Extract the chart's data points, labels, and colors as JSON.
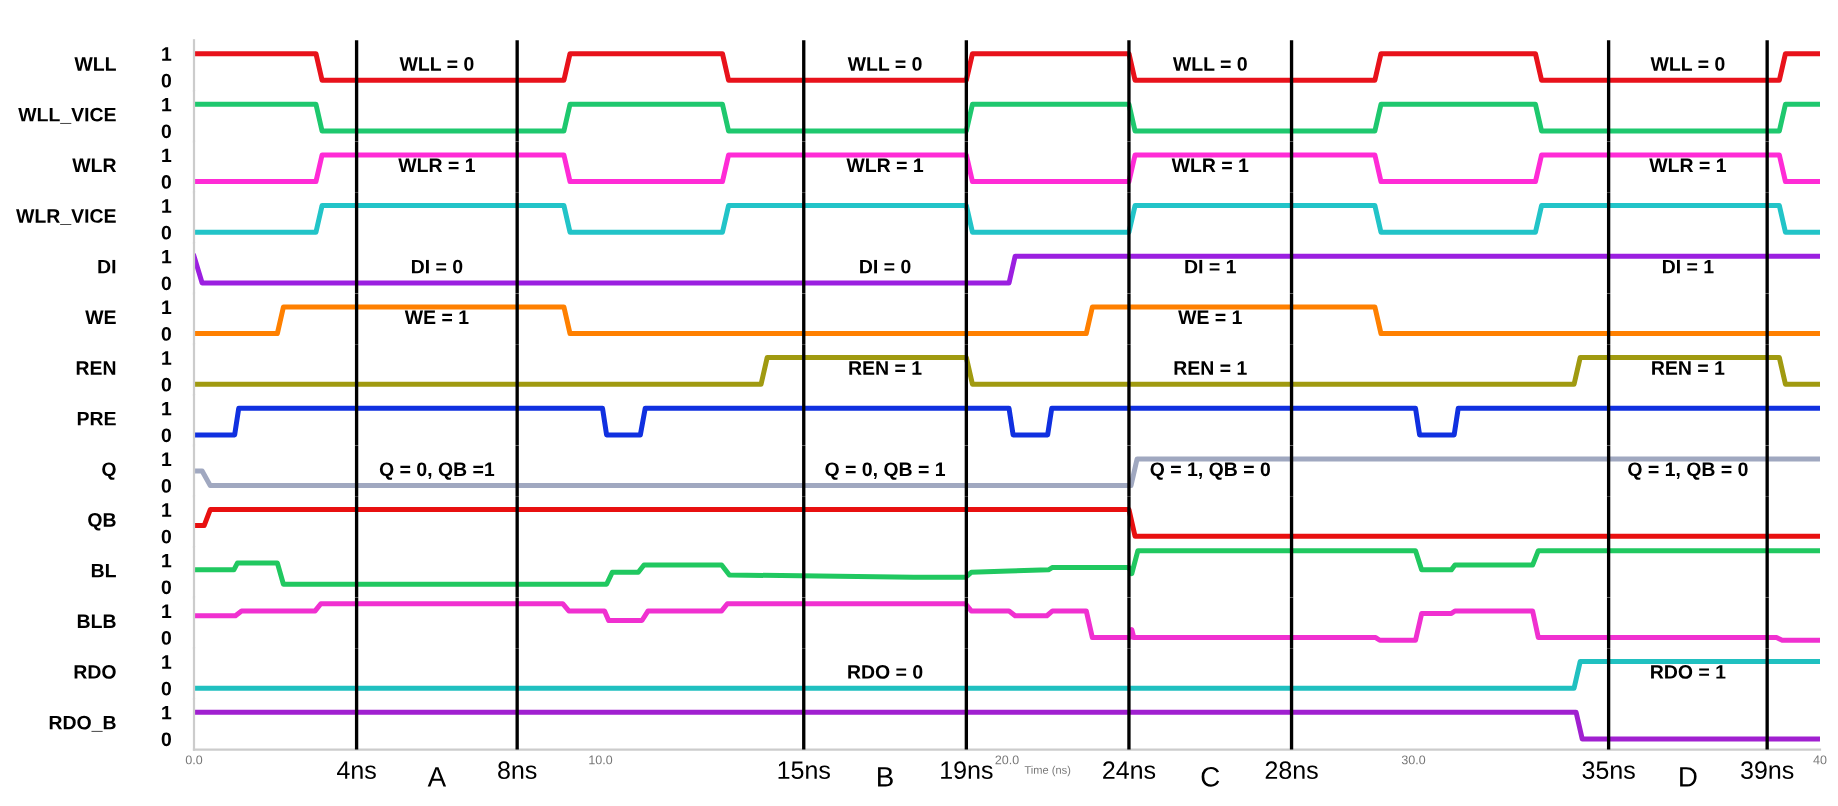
{
  "chart_data": [
    {
      "type": "line",
      "ylabel": "WLL",
      "xlim": [
        0,
        40
      ],
      "ylim": [
        -0.4,
        1.5
      ],
      "yticks": [
        0,
        1
      ],
      "tick_labels": "y",
      "legend": false,
      "series": [
        {
          "color": "#e8121b",
          "x": [
            0,
            3.0,
            3.15,
            9.1,
            9.25,
            13.0,
            13.15,
            19.0,
            19.15,
            23.0,
            23.15,
            29.05,
            29.2,
            33.0,
            33.15,
            39.0,
            39.15,
            40
          ],
          "values": [
            1,
            1,
            0,
            0,
            1,
            1,
            0,
            0,
            1,
            1,
            0,
            0,
            1,
            1,
            0,
            0,
            1,
            1
          ]
        }
      ],
      "annotations": [
        "WLL = 0",
        "WLL = 0",
        "WLL = 0",
        "WLL = 0"
      ],
      "ref_lines": [
        {
          "axis": "x",
          "value": 4.0
        },
        {
          "axis": "x",
          "value": 7.95
        },
        {
          "axis": "x",
          "value": 15.0
        },
        {
          "axis": "x",
          "value": 19.0
        },
        {
          "axis": "x",
          "value": 23.0
        },
        {
          "axis": "x",
          "value": 27.0
        },
        {
          "axis": "x",
          "value": 34.8
        },
        {
          "axis": "x",
          "value": 38.7
        }
      ]
    },
    {
      "type": "line",
      "ylabel": "WLL_VICE",
      "xlim": [
        0,
        40
      ],
      "ylim": [
        -0.4,
        1.5
      ],
      "yticks": [
        0,
        1
      ],
      "tick_labels": "y",
      "legend": false,
      "series": [
        {
          "color": "#1ec86e",
          "x": [
            0,
            3.0,
            3.15,
            9.1,
            9.25,
            13.0,
            13.15,
            19.0,
            19.15,
            23.0,
            23.15,
            29.05,
            29.2,
            33.0,
            33.15,
            39.0,
            39.15,
            40
          ],
          "values": [
            1,
            1,
            0,
            0,
            1,
            1,
            0,
            0,
            1,
            1,
            0,
            0,
            1,
            1,
            0,
            0,
            1,
            1
          ]
        }
      ],
      "ref_lines": [
        {
          "axis": "x",
          "value": 4.0
        },
        {
          "axis": "x",
          "value": 7.95
        },
        {
          "axis": "x",
          "value": 15.0
        },
        {
          "axis": "x",
          "value": 19.0
        },
        {
          "axis": "x",
          "value": 23.0
        },
        {
          "axis": "x",
          "value": 27.0
        },
        {
          "axis": "x",
          "value": 34.8
        },
        {
          "axis": "x",
          "value": 38.7
        }
      ]
    },
    {
      "type": "line",
      "ylabel": "WLR",
      "xlim": [
        0,
        40
      ],
      "ylim": [
        -0.4,
        1.5
      ],
      "yticks": [
        0,
        1
      ],
      "tick_labels": "y",
      "legend": false,
      "series": [
        {
          "color": "#ff2bd6",
          "x": [
            0,
            3.0,
            3.15,
            9.1,
            9.25,
            13.0,
            13.15,
            19.0,
            19.15,
            23.0,
            23.15,
            29.05,
            29.2,
            33.0,
            33.15,
            39.0,
            39.15,
            40
          ],
          "values": [
            0,
            0,
            1,
            1,
            0,
            0,
            1,
            1,
            0,
            0,
            1,
            1,
            0,
            0,
            1,
            1,
            0,
            0
          ]
        }
      ],
      "annotations": [
        "WLR = 1",
        "WLR = 1",
        "WLR = 1",
        "WLR = 1"
      ],
      "ref_lines": [
        {
          "axis": "x",
          "value": 4.0
        },
        {
          "axis": "x",
          "value": 7.95
        },
        {
          "axis": "x",
          "value": 15.0
        },
        {
          "axis": "x",
          "value": 19.0
        },
        {
          "axis": "x",
          "value": 23.0
        },
        {
          "axis": "x",
          "value": 27.0
        },
        {
          "axis": "x",
          "value": 34.8
        },
        {
          "axis": "x",
          "value": 38.7
        }
      ]
    },
    {
      "type": "line",
      "ylabel": "WLR_VICE",
      "xlim": [
        0,
        40
      ],
      "ylim": [
        -0.4,
        1.5
      ],
      "yticks": [
        0,
        1
      ],
      "tick_labels": "y",
      "legend": false,
      "series": [
        {
          "color": "#22c4c8",
          "x": [
            0,
            3.0,
            3.15,
            9.1,
            9.25,
            13.0,
            13.15,
            19.0,
            19.15,
            23.0,
            23.15,
            29.05,
            29.2,
            33.0,
            33.15,
            39.0,
            39.15,
            40
          ],
          "values": [
            0,
            0,
            1,
            1,
            0,
            0,
            1,
            1,
            0,
            0,
            1,
            1,
            0,
            0,
            1,
            1,
            0,
            0
          ]
        }
      ],
      "ref_lines": [
        {
          "axis": "x",
          "value": 4.0
        },
        {
          "axis": "x",
          "value": 7.95
        },
        {
          "axis": "x",
          "value": 15.0
        },
        {
          "axis": "x",
          "value": 19.0
        },
        {
          "axis": "x",
          "value": 23.0
        },
        {
          "axis": "x",
          "value": 27.0
        },
        {
          "axis": "x",
          "value": 34.8
        },
        {
          "axis": "x",
          "value": 38.7
        }
      ]
    },
    {
      "type": "line",
      "ylabel": "DI",
      "xlim": [
        0,
        40
      ],
      "ylim": [
        -0.4,
        1.5
      ],
      "yticks": [
        0,
        1
      ],
      "tick_labels": "y",
      "legend": false,
      "series": [
        {
          "color": "#9b1fe0",
          "x": [
            0,
            0.2,
            20.05,
            20.2,
            40
          ],
          "values": [
            1,
            0,
            0,
            1,
            1
          ]
        }
      ],
      "annotations": [
        "DI = 0",
        "DI = 0",
        "DI = 1",
        "DI = 1"
      ],
      "ref_lines": [
        {
          "axis": "x",
          "value": 4.0
        },
        {
          "axis": "x",
          "value": 7.95
        },
        {
          "axis": "x",
          "value": 15.0
        },
        {
          "axis": "x",
          "value": 19.0
        },
        {
          "axis": "x",
          "value": 23.0
        },
        {
          "axis": "x",
          "value": 27.0
        },
        {
          "axis": "x",
          "value": 34.8
        },
        {
          "axis": "x",
          "value": 38.7
        }
      ]
    },
    {
      "type": "line",
      "ylabel": "WE",
      "xlim": [
        0,
        40
      ],
      "ylim": [
        -0.4,
        1.5
      ],
      "yticks": [
        0,
        1
      ],
      "tick_labels": "y",
      "legend": false,
      "series": [
        {
          "color": "#ff8000",
          "x": [
            0,
            2.05,
            2.2,
            9.1,
            9.25,
            21.95,
            22.1,
            29.05,
            29.2,
            40
          ],
          "values": [
            0,
            0,
            1,
            1,
            0,
            0,
            1,
            1,
            0,
            0
          ]
        }
      ],
      "annotations": [
        "WE = 1",
        null,
        "WE = 1",
        null
      ],
      "ref_lines": [
        {
          "axis": "x",
          "value": 4.0
        },
        {
          "axis": "x",
          "value": 7.95
        },
        {
          "axis": "x",
          "value": 15.0
        },
        {
          "axis": "x",
          "value": 19.0
        },
        {
          "axis": "x",
          "value": 23.0
        },
        {
          "axis": "x",
          "value": 27.0
        },
        {
          "axis": "x",
          "value": 34.8
        },
        {
          "axis": "x",
          "value": 38.7
        }
      ]
    },
    {
      "type": "line",
      "ylabel": "REN",
      "xlim": [
        0,
        40
      ],
      "ylim": [
        -0.4,
        1.5
      ],
      "yticks": [
        0,
        1
      ],
      "tick_labels": "y",
      "legend": false,
      "series": [
        {
          "color": "#a09a10",
          "x": [
            0,
            13.95,
            14.1,
            19.0,
            19.15,
            33.95,
            34.1,
            39.0,
            39.15,
            40
          ],
          "values": [
            0,
            0,
            1,
            1,
            0,
            0,
            1,
            1,
            0,
            0
          ]
        }
      ],
      "annotations": [
        null,
        "REN = 1",
        "REN = 1",
        "REN = 1"
      ],
      "ref_lines": [
        {
          "axis": "x",
          "value": 4.0
        },
        {
          "axis": "x",
          "value": 7.95
        },
        {
          "axis": "x",
          "value": 15.0
        },
        {
          "axis": "x",
          "value": 19.0
        },
        {
          "axis": "x",
          "value": 23.0
        },
        {
          "axis": "x",
          "value": 27.0
        },
        {
          "axis": "x",
          "value": 34.8
        },
        {
          "axis": "x",
          "value": 38.7
        }
      ]
    },
    {
      "type": "line",
      "ylabel": "PRE",
      "xlim": [
        0,
        40
      ],
      "ylim": [
        -0.4,
        1.5
      ],
      "yticks": [
        0,
        1
      ],
      "tick_labels": "y",
      "legend": false,
      "series": [
        {
          "color": "#1030e0",
          "x": [
            0,
            1.0,
            1.1,
            10.05,
            10.15,
            10.98,
            11.1,
            20.05,
            20.15,
            21.0,
            21.1,
            30.05,
            30.15,
            31.0,
            31.1,
            40
          ],
          "values": [
            0,
            0,
            1,
            1,
            0,
            0,
            1,
            1,
            0,
            0,
            1,
            1,
            0,
            0,
            1,
            1
          ]
        }
      ],
      "ref_lines": [
        {
          "axis": "x",
          "value": 4.0
        },
        {
          "axis": "x",
          "value": 7.95
        },
        {
          "axis": "x",
          "value": 15.0
        },
        {
          "axis": "x",
          "value": 19.0
        },
        {
          "axis": "x",
          "value": 23.0
        },
        {
          "axis": "x",
          "value": 27.0
        },
        {
          "axis": "x",
          "value": 34.8
        },
        {
          "axis": "x",
          "value": 38.7
        }
      ]
    },
    {
      "type": "line",
      "ylabel": "Q",
      "xlim": [
        0,
        40
      ],
      "ylim": [
        -0.4,
        1.5
      ],
      "yticks": [
        0,
        1
      ],
      "tick_labels": "y",
      "legend": false,
      "series": [
        {
          "color": "#a0a8c0",
          "x": [
            0,
            0.2,
            0.4,
            23.05,
            23.2,
            40
          ],
          "values": [
            0.55,
            0.55,
            0,
            0,
            1,
            1
          ]
        }
      ],
      "annotations": [
        "Q = 0, QB =1",
        "Q = 0, QB = 1",
        "Q = 1, QB = 0",
        "Q = 1, QB = 0"
      ],
      "ref_lines": [
        {
          "axis": "x",
          "value": 4.0
        },
        {
          "axis": "x",
          "value": 7.95
        },
        {
          "axis": "x",
          "value": 15.0
        },
        {
          "axis": "x",
          "value": 19.0
        },
        {
          "axis": "x",
          "value": 23.0
        },
        {
          "axis": "x",
          "value": 27.0
        },
        {
          "axis": "x",
          "value": 34.8
        },
        {
          "axis": "x",
          "value": 38.7
        }
      ]
    },
    {
      "type": "line",
      "ylabel": "QB",
      "xlim": [
        0,
        40
      ],
      "ylim": [
        -0.4,
        1.5
      ],
      "yticks": [
        0,
        1
      ],
      "tick_labels": "y",
      "legend": false,
      "series": [
        {
          "color": "#e81010",
          "x": [
            0,
            0.25,
            0.4,
            23.0,
            23.15,
            40
          ],
          "values": [
            0.4,
            0.4,
            1,
            1,
            0,
            0
          ]
        }
      ],
      "ref_lines": [
        {
          "axis": "x",
          "value": 4.0
        },
        {
          "axis": "x",
          "value": 7.95
        },
        {
          "axis": "x",
          "value": 15.0
        },
        {
          "axis": "x",
          "value": 19.0
        },
        {
          "axis": "x",
          "value": 23.0
        },
        {
          "axis": "x",
          "value": 27.0
        },
        {
          "axis": "x",
          "value": 34.8
        },
        {
          "axis": "x",
          "value": 38.7
        }
      ]
    },
    {
      "type": "line",
      "ylabel": "BL",
      "xlim": [
        0,
        40
      ],
      "ylim": [
        -0.4,
        1.5
      ],
      "yticks": [
        0,
        1
      ],
      "tick_labels": "y",
      "legend": false,
      "series": [
        {
          "color": "#20c860",
          "x": [
            0,
            0.98,
            1.07,
            2.05,
            2.2,
            10.15,
            10.29,
            10.93,
            11.07,
            12.98,
            13.17,
            17.71,
            18.98,
            19.12,
            20.05,
            21.02,
            21.12,
            23.0,
            23.07,
            23.22,
            30.05,
            30.2,
            30.93,
            31.02,
            32.93,
            33.07,
            40
          ],
          "values": [
            0.64,
            0.64,
            0.9,
            0.9,
            0.1,
            0.1,
            0.55,
            0.55,
            0.82,
            0.82,
            0.45,
            0.36,
            0.36,
            0.55,
            0.6,
            0.64,
            0.73,
            0.73,
            0.5,
            1.36,
            1.36,
            0.64,
            0.64,
            0.82,
            0.82,
            1.36,
            1.36
          ]
        }
      ],
      "ref_lines": [
        {
          "axis": "x",
          "value": 4.0
        },
        {
          "axis": "x",
          "value": 7.95
        },
        {
          "axis": "x",
          "value": 15.0
        },
        {
          "axis": "x",
          "value": 19.0
        },
        {
          "axis": "x",
          "value": 23.0
        },
        {
          "axis": "x",
          "value": 27.0
        },
        {
          "axis": "x",
          "value": 34.8
        },
        {
          "axis": "x",
          "value": 38.7
        }
      ]
    },
    {
      "type": "line",
      "ylabel": "BLB",
      "xlim": [
        0,
        40
      ],
      "ylim": [
        -0.4,
        1.5
      ],
      "yticks": [
        0,
        1
      ],
      "tick_labels": "y",
      "legend": false,
      "series": [
        {
          "color": "#f030d0",
          "x": [
            0,
            1.02,
            1.17,
            2.98,
            3.12,
            9.07,
            9.22,
            10.1,
            10.2,
            11.02,
            11.17,
            12.98,
            13.12,
            18.98,
            19.12,
            20.05,
            20.2,
            20.98,
            21.12,
            21.95,
            22.1,
            23.02,
            23.07,
            23.12,
            29.07,
            29.17,
            30.05,
            30.2,
            30.93,
            31.02,
            32.93,
            33.07,
            38.93,
            39.07,
            40
          ],
          "values": [
            0.82,
            0.82,
            1.0,
            1.0,
            1.27,
            1.27,
            1.0,
            1.0,
            0.64,
            0.64,
            1.0,
            1.0,
            1.27,
            1.27,
            1.0,
            1.0,
            0.82,
            0.82,
            1.0,
            1.0,
            0,
            0,
            0.3,
            0,
            0,
            -0.1,
            -0.1,
            0.9,
            0.9,
            1.0,
            1.0,
            0,
            0,
            -0.1,
            -0.1
          ]
        }
      ],
      "ref_lines": [
        {
          "axis": "x",
          "value": 4.0
        },
        {
          "axis": "x",
          "value": 7.95
        },
        {
          "axis": "x",
          "value": 15.0
        },
        {
          "axis": "x",
          "value": 19.0
        },
        {
          "axis": "x",
          "value": 23.0
        },
        {
          "axis": "x",
          "value": 27.0
        },
        {
          "axis": "x",
          "value": 34.8
        },
        {
          "axis": "x",
          "value": 38.7
        }
      ]
    },
    {
      "type": "line",
      "ylabel": "RDO",
      "xlim": [
        0,
        40
      ],
      "ylim": [
        -0.4,
        1.5
      ],
      "yticks": [
        0,
        1
      ],
      "tick_labels": "y",
      "legend": false,
      "series": [
        {
          "color": "#20c0c0",
          "x": [
            0,
            33.95,
            34.1,
            40
          ],
          "values": [
            0,
            0,
            1,
            1
          ]
        }
      ],
      "annotations": [
        null,
        "RDO = 0",
        null,
        "RDO = 1"
      ],
      "ref_lines": [
        {
          "axis": "x",
          "value": 4.0
        },
        {
          "axis": "x",
          "value": 7.95
        },
        {
          "axis": "x",
          "value": 15.0
        },
        {
          "axis": "x",
          "value": 19.0
        },
        {
          "axis": "x",
          "value": 23.0
        },
        {
          "axis": "x",
          "value": 27.0
        },
        {
          "axis": "x",
          "value": 34.8
        },
        {
          "axis": "x",
          "value": 38.7
        }
      ]
    },
    {
      "type": "line",
      "ylabel": "RDO_B",
      "xlabel": "Time (ns)",
      "xlim": [
        0,
        40
      ],
      "ylim": [
        -0.4,
        1.5
      ],
      "yticks": [
        0,
        1
      ],
      "legend": false,
      "xticks": [
        {
          "value": 0,
          "label": "0.0"
        },
        {
          "value": 10,
          "label": "10.0"
        },
        {
          "value": 20,
          "label": "20.0"
        },
        {
          "value": 30,
          "label": "30.0"
        },
        {
          "value": 40,
          "label": "40"
        }
      ],
      "series": [
        {
          "color": "#a020d0",
          "x": [
            0,
            34.0,
            34.15,
            40
          ],
          "values": [
            1,
            1,
            0,
            0
          ]
        }
      ],
      "annotations": [
        "A",
        "B",
        "C",
        "D"
      ],
      "ref_lines": [
        {
          "axis": "x",
          "value": 4.0,
          "label": "4ns"
        },
        {
          "axis": "x",
          "value": 7.95,
          "label": "8ns"
        },
        {
          "axis": "x",
          "value": 15.0,
          "label": "15ns"
        },
        {
          "axis": "x",
          "value": 19.0,
          "label": "19ns"
        },
        {
          "axis": "x",
          "value": 23.0,
          "label": "24ns"
        },
        {
          "axis": "x",
          "value": 27.0,
          "label": "28ns"
        },
        {
          "axis": "x",
          "value": 34.8,
          "label": "35ns"
        },
        {
          "axis": "x",
          "value": 38.7,
          "label": "39ns"
        }
      ]
    }
  ]
}
